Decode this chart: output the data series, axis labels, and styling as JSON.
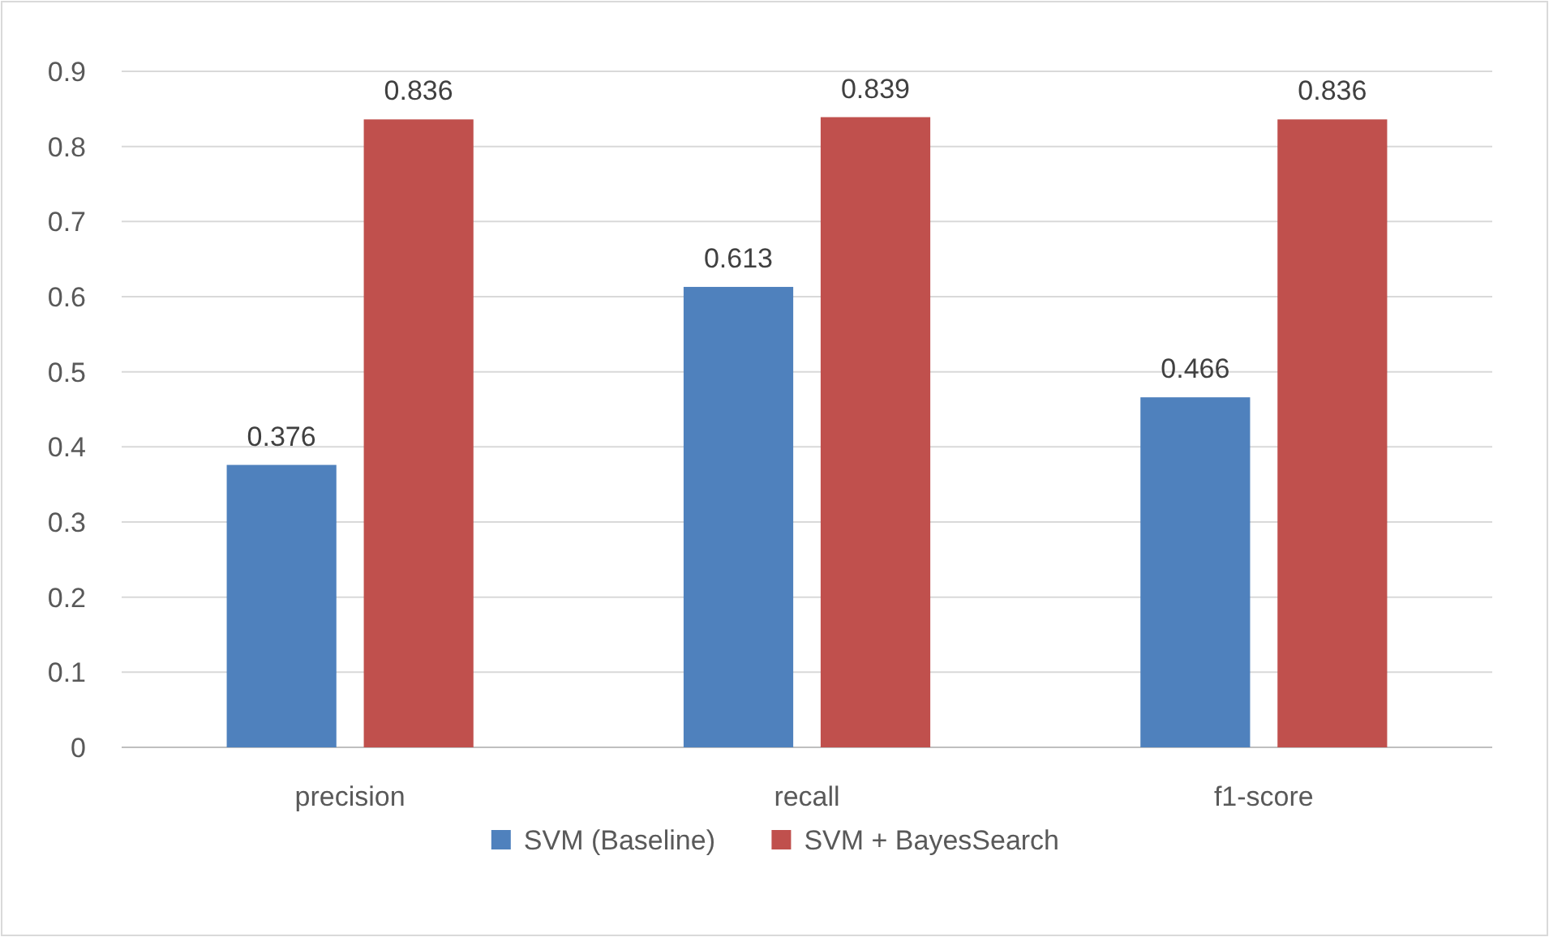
{
  "chart_data": {
    "type": "bar",
    "categories": [
      "precision",
      "recall",
      "f1-score"
    ],
    "series": [
      {
        "name": "SVM (Baseline)",
        "color": "#4f81bd",
        "values": [
          0.376,
          0.613,
          0.466
        ]
      },
      {
        "name": "SVM + BayesSearch",
        "color": "#c0504d",
        "values": [
          0.836,
          0.839,
          0.836
        ]
      }
    ],
    "ylim": [
      0,
      0.9
    ],
    "yticks": [
      {
        "value": 0,
        "label": "0"
      },
      0.1,
      0.2,
      0.3,
      0.4,
      0.5,
      0.6,
      0.7,
      0.8,
      0.9
    ],
    "grid": "y",
    "legend": "bottom",
    "data_labels": true
  }
}
